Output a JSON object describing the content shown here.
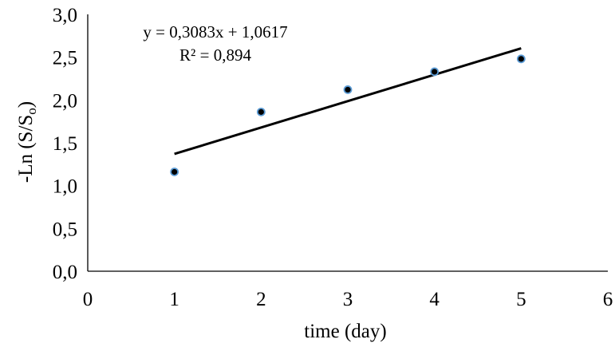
{
  "chart_data": {
    "type": "scatter",
    "title": "",
    "xlabel": "time (day)",
    "ylabel": {
      "main": "-Ln (S/S",
      "subscript": "o",
      "close": ")"
    },
    "xlim": [
      0,
      6
    ],
    "ylim": [
      0.0,
      3.0
    ],
    "x_ticks": [
      "0",
      "1",
      "2",
      "3",
      "4",
      "5",
      "6"
    ],
    "y_ticks": [
      "0,0",
      "0,5",
      "1,0",
      "1,5",
      "2,0",
      "2,5",
      "3,0"
    ],
    "grid": false,
    "legend": "none",
    "series": [
      {
        "points": [
          {
            "x": 1,
            "y": 1.16
          },
          {
            "x": 2,
            "y": 1.86
          },
          {
            "x": 3,
            "y": 2.12
          },
          {
            "x": 4,
            "y": 2.33
          },
          {
            "x": 5,
            "y": 2.48
          }
        ],
        "marker_fill": "#000000",
        "marker_edge": "#5b9bd5"
      }
    ],
    "trendline": {
      "type": "linear",
      "slope": 0.3083,
      "intercept": 1.0617,
      "x_range": [
        1,
        5
      ],
      "color": "#000000"
    },
    "annotations": {
      "equation": "y = 0,3083x + 1,0617",
      "r_squared": "R² = 0,894"
    }
  }
}
